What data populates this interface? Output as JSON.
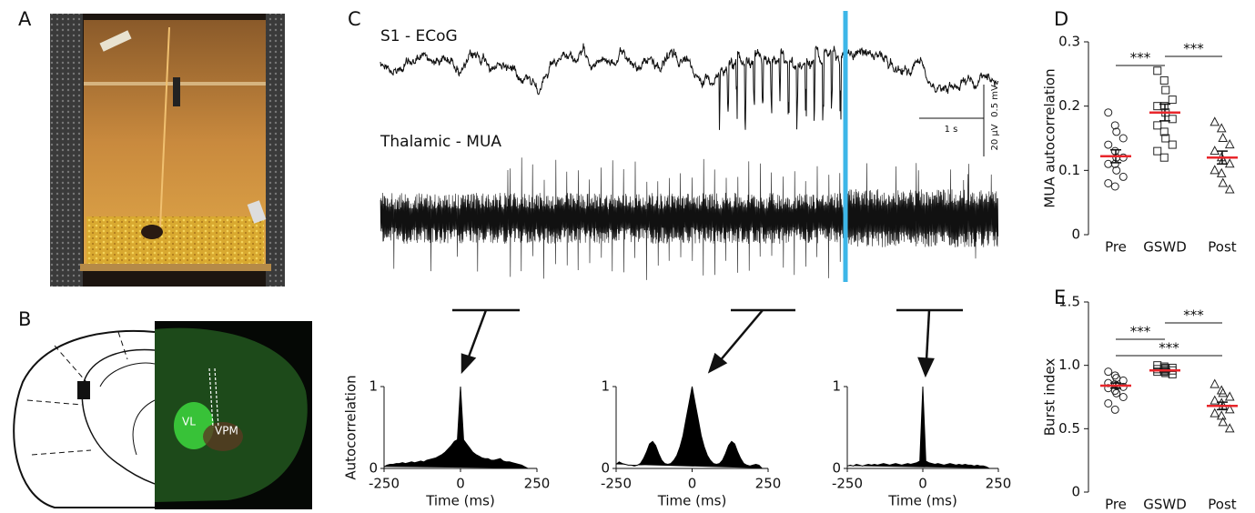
{
  "panel_labels": [
    "A",
    "B",
    "C",
    "D",
    "E"
  ],
  "panel_b": {
    "labels": [
      "VL",
      "VPM"
    ]
  },
  "panel_c": {
    "ecog_label": "S1 - ECoG",
    "mua_label": "Thalamic - MUA",
    "scale_ecog": "0.5 mV",
    "scale_time": "1 s",
    "scale_mua": "20 µV"
  },
  "chart_data": [
    {
      "type": "autocorrelogram",
      "ylabel": "Autocorrelation",
      "xlabel": "Time (ms)",
      "color": "#000000",
      "x": [
        -250,
        -240,
        -230,
        -220,
        -210,
        -200,
        -190,
        -180,
        -170,
        -160,
        -150,
        -140,
        -130,
        -120,
        -110,
        -100,
        -90,
        -80,
        -70,
        -60,
        -50,
        -40,
        -30,
        -20,
        -10,
        0,
        10,
        20,
        30,
        40,
        50,
        60,
        70,
        80,
        90,
        100,
        110,
        120,
        130,
        140,
        150,
        160,
        170,
        180,
        190,
        200,
        210,
        220,
        230,
        240,
        250
      ],
      "values": [
        0.02,
        0.04,
        0.05,
        0.05,
        0.06,
        0.06,
        0.07,
        0.06,
        0.07,
        0.08,
        0.07,
        0.08,
        0.09,
        0.08,
        0.1,
        0.11,
        0.12,
        0.13,
        0.15,
        0.17,
        0.2,
        0.24,
        0.28,
        0.33,
        0.35,
        1.0,
        0.35,
        0.3,
        0.25,
        0.2,
        0.17,
        0.15,
        0.13,
        0.12,
        0.12,
        0.1,
        0.1,
        0.11,
        0.12,
        0.09,
        0.08,
        0.08,
        0.07,
        0.06,
        0.05,
        0.04,
        0.02,
        0,
        0,
        0,
        0
      ],
      "xlim": [
        -250,
        250
      ],
      "xticks": [
        -250,
        0,
        250
      ],
      "ylim": [
        0,
        1
      ],
      "yticks": [
        0,
        1
      ]
    },
    {
      "type": "autocorrelogram",
      "xlabel": "Time (ms)",
      "color": "#000000",
      "x": [
        -250,
        -240,
        -230,
        -220,
        -210,
        -200,
        -190,
        -180,
        -170,
        -160,
        -150,
        -140,
        -130,
        -120,
        -110,
        -100,
        -90,
        -80,
        -70,
        -60,
        -50,
        -40,
        -30,
        -20,
        -10,
        0,
        10,
        20,
        30,
        40,
        50,
        60,
        70,
        80,
        90,
        100,
        110,
        120,
        130,
        140,
        150,
        160,
        170,
        180,
        190,
        200,
        210,
        220,
        230,
        240,
        250
      ],
      "values": [
        0.05,
        0.08,
        0.06,
        0.05,
        0.04,
        0.04,
        0.03,
        0.04,
        0.06,
        0.12,
        0.2,
        0.3,
        0.33,
        0.28,
        0.18,
        0.1,
        0.06,
        0.05,
        0.06,
        0.1,
        0.16,
        0.26,
        0.4,
        0.6,
        0.8,
        1.0,
        0.8,
        0.6,
        0.4,
        0.26,
        0.16,
        0.1,
        0.06,
        0.05,
        0.06,
        0.1,
        0.18,
        0.28,
        0.33,
        0.3,
        0.2,
        0.12,
        0.06,
        0.04,
        0.03,
        0.04,
        0.05,
        0.04,
        0,
        0,
        0
      ],
      "xlim": [
        -250,
        250
      ],
      "xticks": [
        -250,
        0,
        250
      ],
      "ylim": [
        0,
        1
      ],
      "yticks": [
        0,
        1
      ]
    },
    {
      "type": "autocorrelogram",
      "xlabel": "Time (ms)",
      "color": "#000000",
      "x": [
        -250,
        -240,
        -230,
        -220,
        -210,
        -200,
        -190,
        -180,
        -170,
        -160,
        -150,
        -140,
        -130,
        -120,
        -110,
        -100,
        -90,
        -80,
        -70,
        -60,
        -50,
        -40,
        -30,
        -20,
        -10,
        0,
        10,
        20,
        30,
        40,
        50,
        60,
        70,
        80,
        90,
        100,
        110,
        120,
        130,
        140,
        150,
        160,
        170,
        180,
        190,
        200,
        210,
        220,
        230,
        240,
        250
      ],
      "values": [
        0.03,
        0.04,
        0.03,
        0.05,
        0.04,
        0.03,
        0.04,
        0.05,
        0.04,
        0.05,
        0.04,
        0.05,
        0.06,
        0.05,
        0.04,
        0.05,
        0.06,
        0.05,
        0.04,
        0.05,
        0.06,
        0.05,
        0.06,
        0.07,
        0.09,
        1.0,
        0.09,
        0.07,
        0.06,
        0.05,
        0.06,
        0.05,
        0.04,
        0.05,
        0.06,
        0.05,
        0.04,
        0.05,
        0.04,
        0.05,
        0.04,
        0.04,
        0.03,
        0.04,
        0.03,
        0.03,
        0.02,
        0,
        0,
        0,
        0
      ],
      "xlim": [
        -250,
        250
      ],
      "xticks": [
        -250,
        0,
        250
      ],
      "ylim": [
        0,
        1
      ],
      "yticks": [
        0,
        1
      ]
    },
    {
      "type": "dot",
      "ylabel": "MUA autocorrelation",
      "categories": [
        "Pre",
        "GSWD",
        "Post"
      ],
      "markers": [
        "circle",
        "square",
        "triangle"
      ],
      "mean_color": "#e8262b",
      "points": [
        [
          0.19,
          0.17,
          0.16,
          0.15,
          0.14,
          0.13,
          0.12,
          0.12,
          0.11,
          0.11,
          0.1,
          0.09,
          0.08,
          0.075
        ],
        [
          0.255,
          0.24,
          0.225,
          0.21,
          0.2,
          0.2,
          0.19,
          0.18,
          0.17,
          0.16,
          0.15,
          0.14,
          0.13,
          0.12
        ],
        [
          0.175,
          0.165,
          0.15,
          0.14,
          0.13,
          0.12,
          0.115,
          0.11,
          0.1,
          0.095,
          0.08,
          0.07
        ]
      ],
      "means": [
        0.122,
        0.19,
        0.12
      ],
      "sem": [
        0.01,
        0.013,
        0.01
      ],
      "significance": [
        {
          "groups": [
            0,
            1
          ],
          "label": "***"
        },
        {
          "groups": [
            1,
            2
          ],
          "label": "***"
        }
      ],
      "ylim": [
        0,
        0.3
      ],
      "yticks": [
        0,
        0.1,
        0.2,
        0.3
      ]
    },
    {
      "type": "dot",
      "ylabel": "Burst index",
      "categories": [
        "Pre",
        "GSWD",
        "Post"
      ],
      "markers": [
        "circle",
        "square",
        "triangle"
      ],
      "mean_color": "#e8262b",
      "points": [
        [
          0.95,
          0.92,
          0.9,
          0.88,
          0.86,
          0.85,
          0.84,
          0.83,
          0.82,
          0.8,
          0.78,
          0.75,
          0.7,
          0.65
        ],
        [
          1.0,
          0.99,
          0.98,
          0.98,
          0.97,
          0.97,
          0.96,
          0.96,
          0.95,
          0.95,
          0.94,
          0.93
        ],
        [
          0.85,
          0.8,
          0.78,
          0.75,
          0.72,
          0.7,
          0.68,
          0.65,
          0.62,
          0.6,
          0.55,
          0.5
        ]
      ],
      "means": [
        0.84,
        0.96,
        0.68
      ],
      "sem": [
        0.02,
        0.01,
        0.03
      ],
      "significance": [
        {
          "groups": [
            0,
            1
          ],
          "label": "***"
        },
        {
          "groups": [
            1,
            2
          ],
          "label": "***"
        },
        {
          "groups": [
            0,
            2
          ],
          "label": "***"
        }
      ],
      "ylim": [
        0,
        1.5
      ],
      "yticks": [
        0,
        0.5,
        {
          "value": 1,
          "label": "1.0"
        },
        1.5
      ]
    }
  ]
}
